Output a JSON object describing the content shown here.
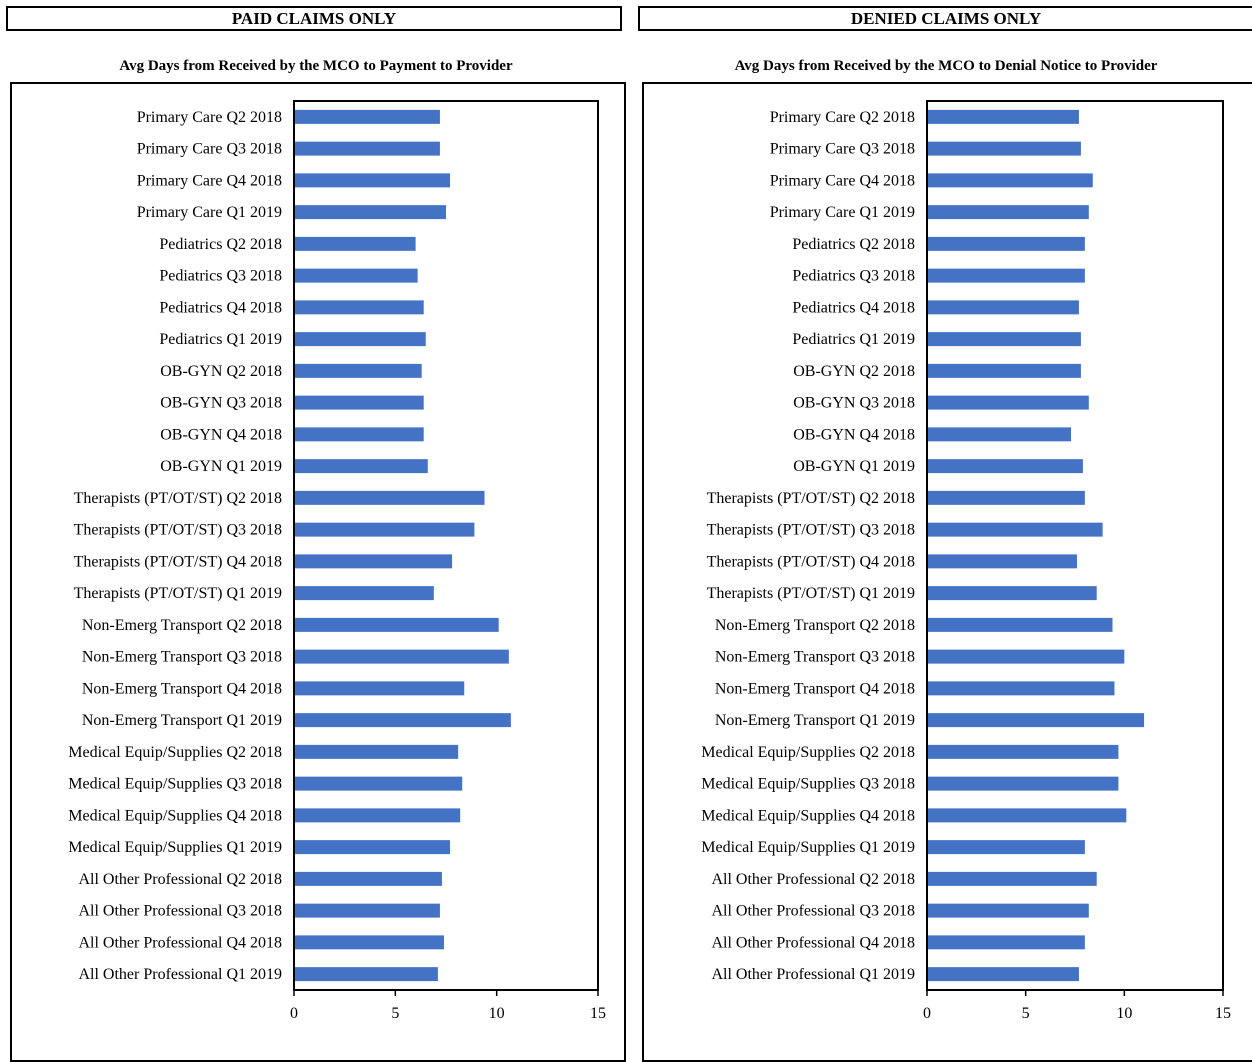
{
  "panels": [
    {
      "header": "PAID CLAIMS ONLY",
      "subtitle": "Avg Days from Received by the MCO to Payment to Provider"
    },
    {
      "header": "DENIED CLAIMS ONLY",
      "subtitle": "Avg Days from Received by the MCO to Denial Notice to Provider"
    }
  ],
  "chart_data": [
    {
      "type": "bar",
      "orientation": "horizontal",
      "title": "Avg Days from Received by the MCO to Payment to Provider",
      "bar_color": "#4472C4",
      "xlim": [
        0,
        15
      ],
      "xticks": [
        0,
        5,
        10,
        15
      ],
      "grid": false,
      "categories": [
        "Primary Care Q2 2018",
        "Primary Care Q3 2018",
        "Primary Care Q4 2018",
        "Primary Care Q1 2019",
        "Pediatrics Q2 2018",
        "Pediatrics Q3 2018",
        "Pediatrics Q4 2018",
        "Pediatrics Q1 2019",
        "OB-GYN Q2 2018",
        "OB-GYN Q3 2018",
        "OB-GYN Q4 2018",
        "OB-GYN Q1 2019",
        "Therapists (PT/OT/ST) Q2 2018",
        "Therapists (PT/OT/ST) Q3 2018",
        "Therapists (PT/OT/ST) Q4 2018",
        "Therapists (PT/OT/ST) Q1 2019",
        "Non-Emerg Transport Q2 2018",
        "Non-Emerg Transport Q3 2018",
        "Non-Emerg Transport Q4 2018",
        "Non-Emerg Transport Q1 2019",
        "Medical Equip/Supplies Q2 2018",
        "Medical Equip/Supplies Q3 2018",
        "Medical Equip/Supplies Q4 2018",
        "Medical Equip/Supplies Q1 2019",
        "All Other Professional Q2 2018",
        "All Other Professional Q3 2018",
        "All Other Professional Q4 2018",
        "All Other Professional Q1 2019"
      ],
      "values": [
        7.2,
        7.2,
        7.7,
        7.5,
        6.0,
        6.1,
        6.4,
        6.5,
        6.3,
        6.4,
        6.4,
        6.6,
        9.4,
        8.9,
        7.8,
        6.9,
        10.1,
        10.6,
        8.4,
        10.7,
        8.1,
        8.3,
        8.2,
        7.7,
        7.3,
        7.2,
        7.4,
        7.1
      ]
    },
    {
      "type": "bar",
      "orientation": "horizontal",
      "title": "Avg Days from Received by the MCO to Denial Notice to Provider",
      "bar_color": "#4472C4",
      "xlim": [
        0,
        15
      ],
      "xticks": [
        0,
        5,
        10,
        15
      ],
      "grid": false,
      "categories": [
        "Primary Care Q2 2018",
        "Primary Care Q3 2018",
        "Primary Care Q4 2018",
        "Primary Care Q1 2019",
        "Pediatrics Q2 2018",
        "Pediatrics Q3 2018",
        "Pediatrics Q4 2018",
        "Pediatrics Q1 2019",
        "OB-GYN Q2 2018",
        "OB-GYN Q3 2018",
        "OB-GYN Q4 2018",
        "OB-GYN Q1 2019",
        "Therapists (PT/OT/ST) Q2 2018",
        "Therapists (PT/OT/ST) Q3 2018",
        "Therapists (PT/OT/ST) Q4 2018",
        "Therapists (PT/OT/ST) Q1 2019",
        "Non-Emerg Transport Q2 2018",
        "Non-Emerg Transport Q3 2018",
        "Non-Emerg Transport Q4 2018",
        "Non-Emerg Transport Q1 2019",
        "Medical Equip/Supplies Q2 2018",
        "Medical Equip/Supplies Q3 2018",
        "Medical Equip/Supplies Q4 2018",
        "Medical Equip/Supplies Q1 2019",
        "All Other Professional Q2 2018",
        "All Other Professional Q3 2018",
        "All Other Professional Q4 2018",
        "All Other Professional Q1 2019"
      ],
      "values": [
        7.7,
        7.8,
        8.4,
        8.2,
        8.0,
        8.0,
        7.7,
        7.8,
        7.8,
        8.2,
        7.3,
        7.9,
        8.0,
        8.9,
        7.6,
        8.6,
        9.4,
        10.0,
        9.5,
        11.0,
        9.7,
        9.7,
        10.1,
        8.0,
        8.6,
        8.2,
        8.0,
        7.7
      ]
    }
  ]
}
